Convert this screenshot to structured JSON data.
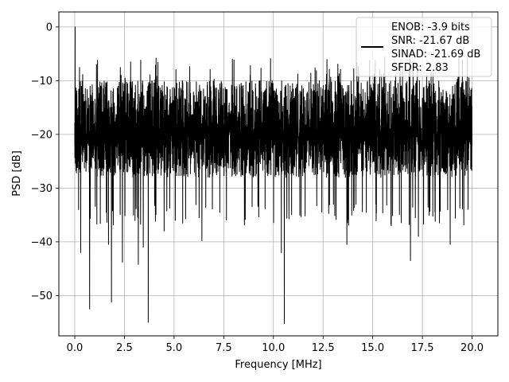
{
  "chart_data": {
    "type": "line",
    "title": "",
    "xlabel": "Frequency [MHz]",
    "ylabel": "PSD [dB]",
    "xlim": [
      -0.8,
      21.3
    ],
    "ylim": [
      -57.5,
      2.8
    ],
    "x_ticks": [
      0.0,
      2.5,
      5.0,
      7.5,
      10.0,
      12.5,
      15.0,
      17.5,
      20.0
    ],
    "x_tick_labels": [
      "0.0",
      "2.5",
      "5.0",
      "7.5",
      "10.0",
      "12.5",
      "15.0",
      "17.5",
      "20.0"
    ],
    "y_ticks": [
      0,
      -10,
      -20,
      -30,
      -40,
      -50
    ],
    "y_tick_labels": [
      "0",
      "−10",
      "−20",
      "−30",
      "−40",
      "−50"
    ],
    "grid": true,
    "legend_position": "top-right",
    "line_color": "#000000",
    "series": [
      {
        "name": "ENOB: -3.9 bits\nSNR: -21.67 dB\nSINAD: -21.69 dB\nSFDR: 2.83",
        "x_range": [
          0.0,
          20.0
        ],
        "peak": {
          "x": 0.02,
          "y": 0.0
        },
        "baseline": {
          "upper": [
            -14,
            -10
          ],
          "lower": [
            -26,
            -33
          ],
          "center": -20
        },
        "dips": [
          {
            "x": 0.75,
            "y": -52.5
          },
          {
            "x": 1.85,
            "y": -51.2
          },
          {
            "x": 3.7,
            "y": -55.0
          },
          {
            "x": 10.55,
            "y": -55.2
          },
          {
            "x": 0.3,
            "y": -42.0
          },
          {
            "x": 1.7,
            "y": -40.5
          },
          {
            "x": 2.4,
            "y": -43.8
          },
          {
            "x": 3.2,
            "y": -44.2
          },
          {
            "x": 3.45,
            "y": -41.0
          },
          {
            "x": 4.5,
            "y": -38.0
          },
          {
            "x": 6.4,
            "y": -39.8
          },
          {
            "x": 10.4,
            "y": -42.0
          },
          {
            "x": 13.7,
            "y": -40.5
          },
          {
            "x": 16.9,
            "y": -43.5
          },
          {
            "x": 17.3,
            "y": -39.0
          },
          {
            "x": 18.9,
            "y": -40.5
          }
        ]
      }
    ],
    "legend_lines": [
      "ENOB: -3.9 bits",
      "SNR: -21.67 dB",
      "SINAD: -21.69 dB",
      "SFDR: 2.83"
    ]
  }
}
